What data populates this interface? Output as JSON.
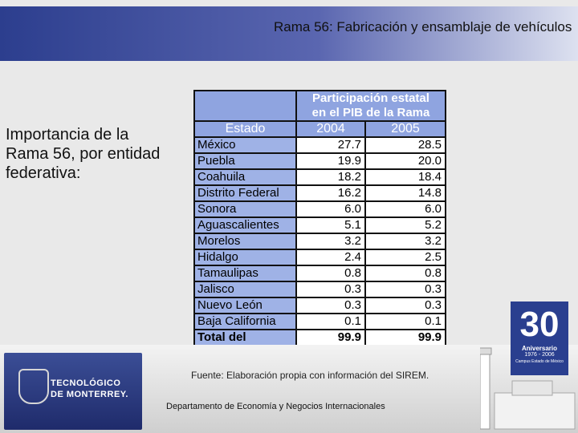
{
  "header": {
    "title": "Rama 56: Fabricación y ensamblaje de vehículos"
  },
  "sidebar": {
    "text": "Importancia de la Rama 56, por entidad federativa:"
  },
  "table": {
    "header_line1": "Participación estatal",
    "header_line2": "en el PIB de la Rama",
    "col_estado": "Estado",
    "col_2004": "2004",
    "col_2005": "2005",
    "rows": [
      {
        "estado": "México",
        "v2004": "27.7",
        "v2005": "28.5"
      },
      {
        "estado": "Puebla",
        "v2004": "19.9",
        "v2005": "20.0"
      },
      {
        "estado": "Coahuila",
        "v2004": "18.2",
        "v2005": "18.4"
      },
      {
        "estado": "Distrito Federal",
        "v2004": "16.2",
        "v2005": "14.8"
      },
      {
        "estado": "Sonora",
        "v2004": "6.0",
        "v2005": "6.0"
      },
      {
        "estado": "Aguascalientes",
        "v2004": "5.1",
        "v2005": "5.2"
      },
      {
        "estado": "Morelos",
        "v2004": "3.2",
        "v2005": "3.2"
      },
      {
        "estado": "Hidalgo",
        "v2004": "2.4",
        "v2005": "2.5"
      },
      {
        "estado": "Tamaulipas",
        "v2004": "0.8",
        "v2005": "0.8"
      },
      {
        "estado": "Jalisco",
        "v2004": "0.3",
        "v2005": "0.3"
      },
      {
        "estado": "Nuevo León",
        "v2004": "0.3",
        "v2005": "0.3"
      },
      {
        "estado": "Baja California",
        "v2004": "0.1",
        "v2005": "0.1"
      }
    ],
    "total": {
      "estado": "Total del",
      "v2004": "99.9",
      "v2005": "99.9"
    }
  },
  "footer": {
    "source": "Fuente: Elaboración propia con información del SIREM.",
    "department": "Departamento de Economía y Negocios Internacionales",
    "logo_line1": "TECNOLÓGICO",
    "logo_line2": "DE MONTERREY.",
    "anniversary_number": "30",
    "anniversary_label": "Aniversario",
    "anniversary_years": "1976 - 2006",
    "anniversary_campus": "Campus Estado de México"
  },
  "colors": {
    "header_blue": "#2c3e8e",
    "table_blue": "#9fb2e6",
    "panel_blue": "#2a3f8f"
  }
}
